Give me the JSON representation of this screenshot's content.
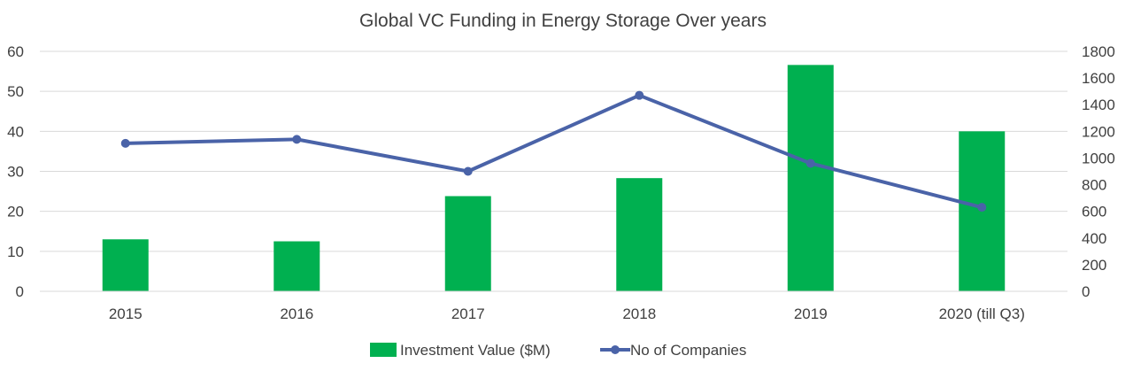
{
  "chart_data": {
    "type": "bar",
    "title": "Global VC Funding in Energy Storage Over years",
    "categories": [
      "2015",
      "2016",
      "2017",
      "2018",
      "2019",
      "2020 (till Q3)"
    ],
    "series": [
      {
        "name": "Investment Value ($M)",
        "type": "bar",
        "axis": "left",
        "color": "#00b050",
        "values": [
          13,
          12.5,
          23.8,
          28.3,
          56.6,
          40
        ]
      },
      {
        "name": "No of Companies",
        "type": "line",
        "axis": "right",
        "color": "#4a63a8",
        "values": [
          1110,
          1140,
          900,
          1470,
          960,
          630
        ]
      }
    ],
    "y_left": {
      "min": 0,
      "max": 60,
      "ticks": [
        "0",
        "10",
        "20",
        "30",
        "40",
        "50",
        "60"
      ]
    },
    "y_right": {
      "min": 0,
      "max": 1800,
      "ticks": [
        "0",
        "200",
        "400",
        "600",
        "800",
        "1000",
        "1200",
        "1400",
        "1600",
        "1800"
      ]
    },
    "grid": true,
    "legend_position": "bottom"
  }
}
